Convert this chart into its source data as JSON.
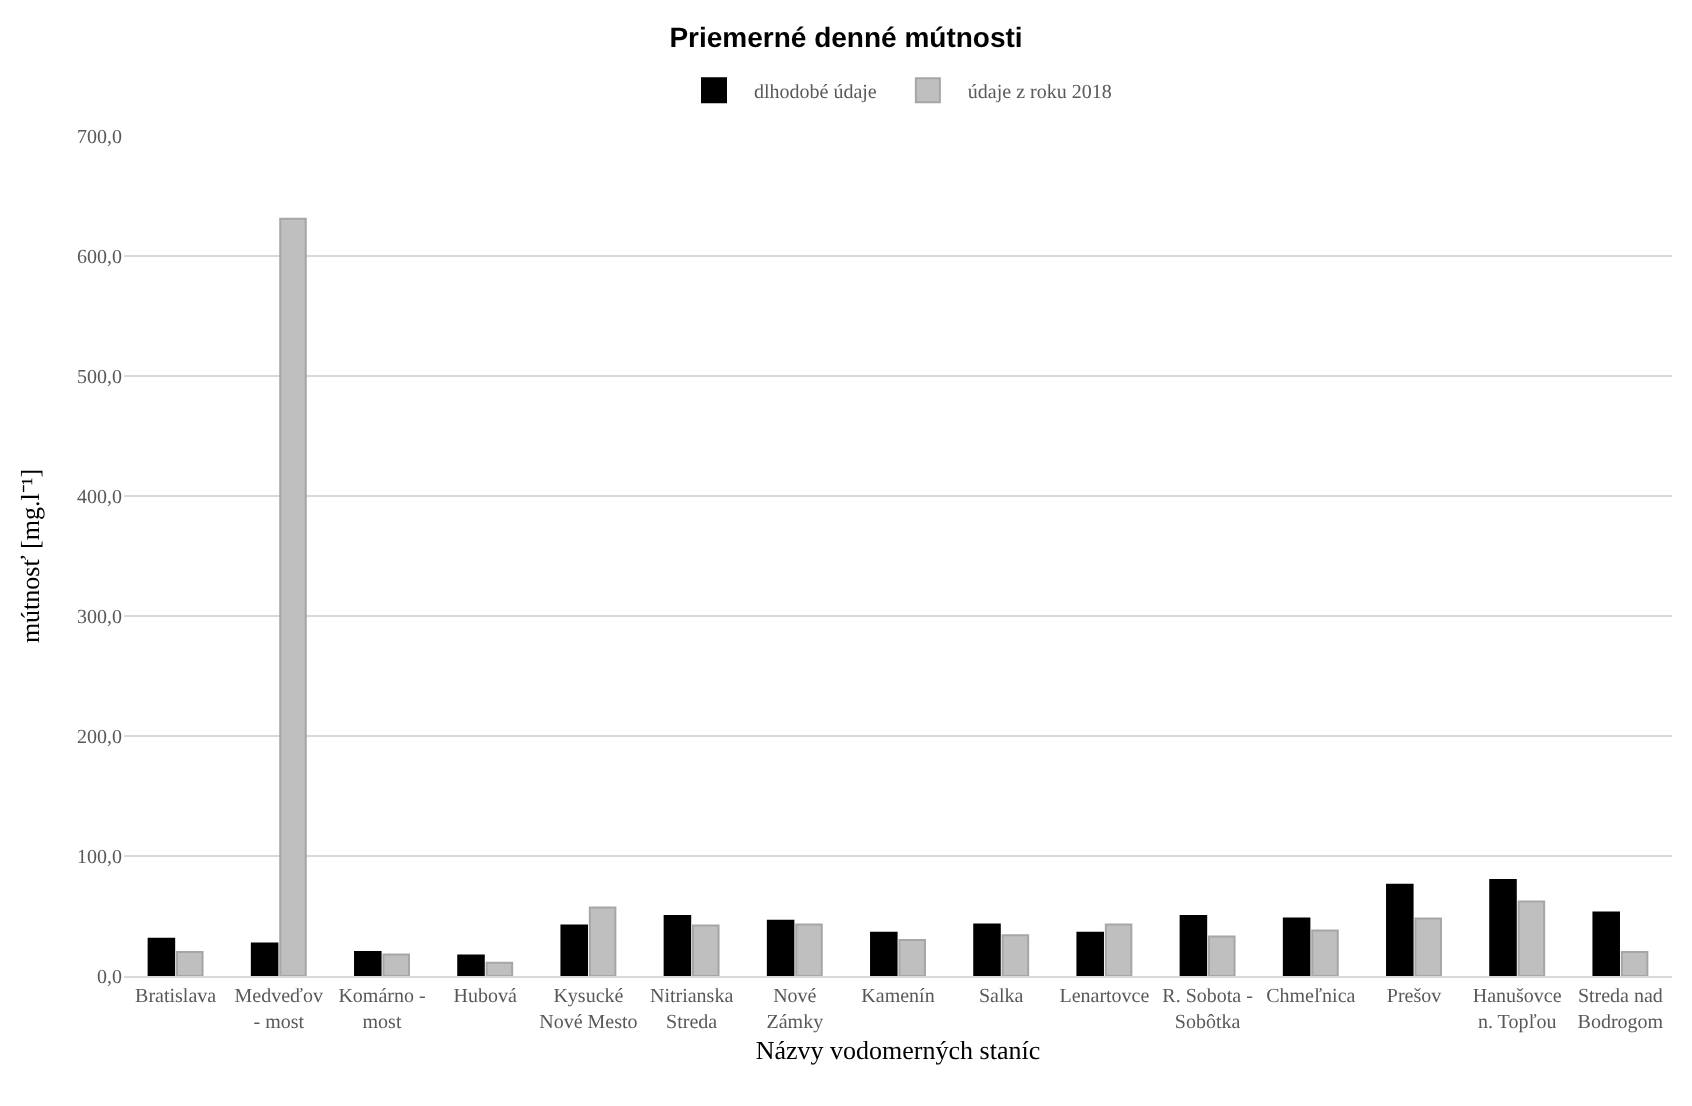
{
  "chart_data": {
    "type": "bar",
    "title": "Priemerné denné mútnosti",
    "xlabel": "Názvy vodomerných staníc",
    "ylabel": "mútnosť [mg.l⁻¹]",
    "categories": [
      "Bratislava",
      "Medveďov\n- most",
      "Komárno -\nmost",
      "Hubová",
      "Kysucké\nNové Mesto",
      "Nitrianska\nStreda",
      "Nové\nZámky",
      "Kamenín",
      "Salka",
      "Lenartovce",
      "R. Sobota -\nSobôtka",
      "Chmeľnica",
      "Prešov",
      "Hanušovce\nn. Topľou",
      "Streda nad\nBodrogom"
    ],
    "series": [
      {
        "name": "dlhodobé údaje",
        "color": "#000000",
        "values": [
          31,
          27,
          20,
          17,
          42,
          50,
          46,
          36,
          43,
          36,
          50,
          48,
          76,
          80,
          53
        ]
      },
      {
        "name": "údaje z roku 2018",
        "color": "#bfbfbf",
        "values": [
          20,
          631,
          18,
          11,
          57,
          42,
          43,
          30,
          34,
          43,
          33,
          38,
          48,
          62,
          20
        ]
      }
    ],
    "ylim": [
      0,
      700
    ],
    "yticks": [
      {
        "value": 0,
        "label": "0,0"
      },
      {
        "value": 100,
        "label": "100,0"
      },
      {
        "value": 200,
        "label": "200,0"
      },
      {
        "value": 300,
        "label": "300,0"
      },
      {
        "value": 400,
        "label": "400,0"
      },
      {
        "value": 500,
        "label": "500,0"
      },
      {
        "value": 600,
        "label": "600,0"
      },
      {
        "value": 700,
        "label": "700,0"
      }
    ],
    "grid": "y",
    "legend": "top"
  }
}
